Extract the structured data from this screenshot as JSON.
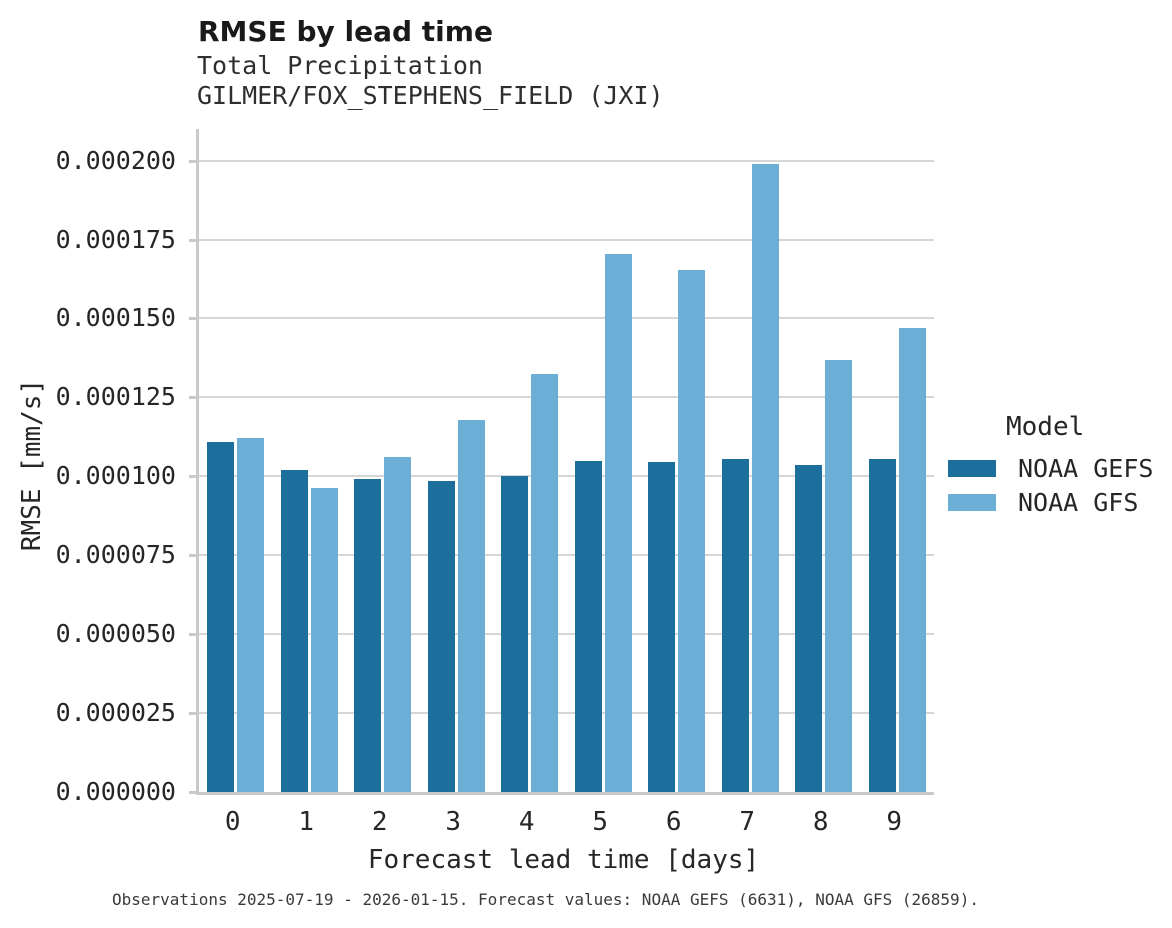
{
  "header": {
    "title": "RMSE by lead time",
    "subtitle1": "Total Precipitation",
    "subtitle2": "GILMER/FOX_STEPHENS_FIELD (JXI)"
  },
  "chart_data": {
    "type": "bar",
    "title": "RMSE by lead time",
    "subtitle": [
      "Total Precipitation",
      "GILMER/FOX_STEPHENS_FIELD (JXI)"
    ],
    "categories": [
      "0",
      "1",
      "2",
      "3",
      "4",
      "5",
      "6",
      "7",
      "8",
      "9"
    ],
    "series": [
      {
        "name": "NOAA GEFS",
        "color": "#1c6e9c",
        "values": [
          0.000111,
          0.000102,
          9.9e-05,
          9.85e-05,
          0.0001,
          0.000105,
          0.0001045,
          0.0001055,
          0.0001035,
          0.0001055
        ]
      },
      {
        "name": "NOAA GFS",
        "color": "#6bafd7",
        "values": [
          0.000112,
          9.62e-05,
          0.000106,
          0.000118,
          0.0001325,
          0.0001705,
          0.0001655,
          0.000199,
          0.000137,
          0.000147
        ]
      }
    ],
    "xlabel": "Forecast lead time [days]",
    "ylabel": "RMSE [mm/s]",
    "ylim": [
      0,
      0.00021
    ],
    "ytick_values": [
      0,
      2.5e-05,
      5e-05,
      7.5e-05,
      0.0001,
      0.000125,
      0.00015,
      0.000175,
      0.0002
    ],
    "ytick_labels": [
      "0.000000",
      "0.000025",
      "0.000050",
      "0.000075",
      "0.000100",
      "0.000125",
      "0.000150",
      "0.000175",
      "0.000200"
    ],
    "grid": "horizontal",
    "legend_position": "right"
  },
  "legend": {
    "title": "Model",
    "entries": [
      {
        "label": "NOAA GEFS",
        "color": "#1c6e9c"
      },
      {
        "label": "NOAA GFS",
        "color": "#6bafd7"
      }
    ]
  },
  "footer": {
    "caption": "Observations 2025-07-19 - 2026-01-15. Forecast values: NOAA GEFS (6631), NOAA GFS (26859)."
  },
  "colors": {
    "gefs_bar": "#1c6e9c",
    "gfs_bar": "#6bafd7",
    "gridline": "#d6d6d6",
    "spine": "#c9c9c9",
    "text": "#262626"
  }
}
